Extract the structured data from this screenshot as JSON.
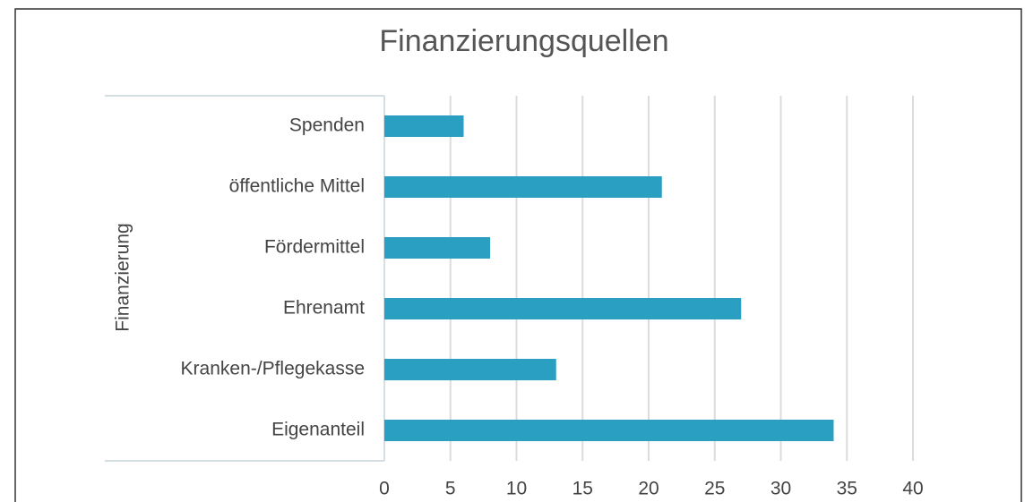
{
  "chart_data": {
    "type": "bar",
    "orientation": "horizontal",
    "title": "Finanzierungsquellen",
    "y_label": "Finanzierung",
    "categories": [
      "Spenden",
      "öffentliche Mittel",
      "Fördermittel",
      "Ehrenamt",
      "Kranken-/Pflegekasse",
      "Eigenanteil"
    ],
    "values": [
      6,
      21,
      8,
      27,
      13,
      34
    ],
    "color": "#2a9fc2",
    "xlim": [
      0,
      40
    ],
    "xticks": [
      0,
      5,
      10,
      15,
      20,
      25,
      30,
      35,
      40
    ],
    "grid": true
  }
}
